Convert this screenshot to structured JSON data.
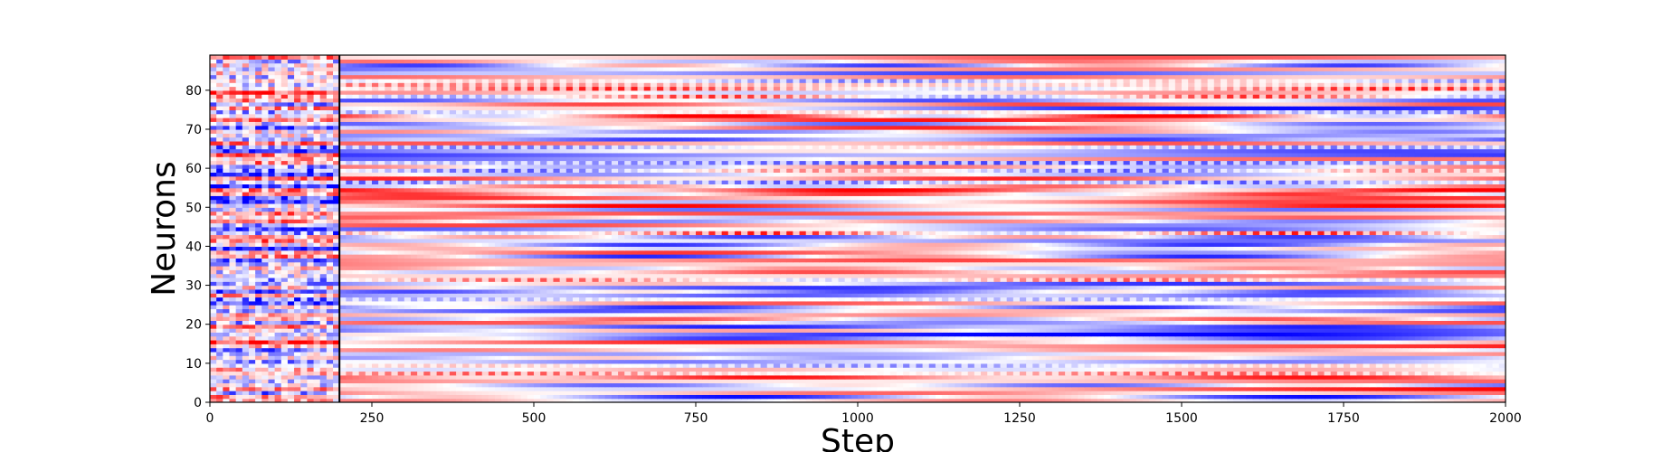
{
  "chart_data": {
    "type": "heatmap",
    "title": "",
    "xlabel": "Step",
    "ylabel": "Neurons",
    "xlim": [
      0,
      2000
    ],
    "ylim": [
      0,
      89
    ],
    "x_ticks": [
      "0",
      "250",
      "500",
      "750",
      "1000",
      "1250",
      "1500",
      "1750",
      "2000"
    ],
    "y_ticks": [
      "0",
      "10",
      "20",
      "30",
      "40",
      "50",
      "60",
      "70",
      "80"
    ],
    "colormap": [
      "#0000ff",
      "#ffffff",
      "#ff0000"
    ],
    "vertical_line_x": 200,
    "grid": false,
    "legend": "none"
  }
}
